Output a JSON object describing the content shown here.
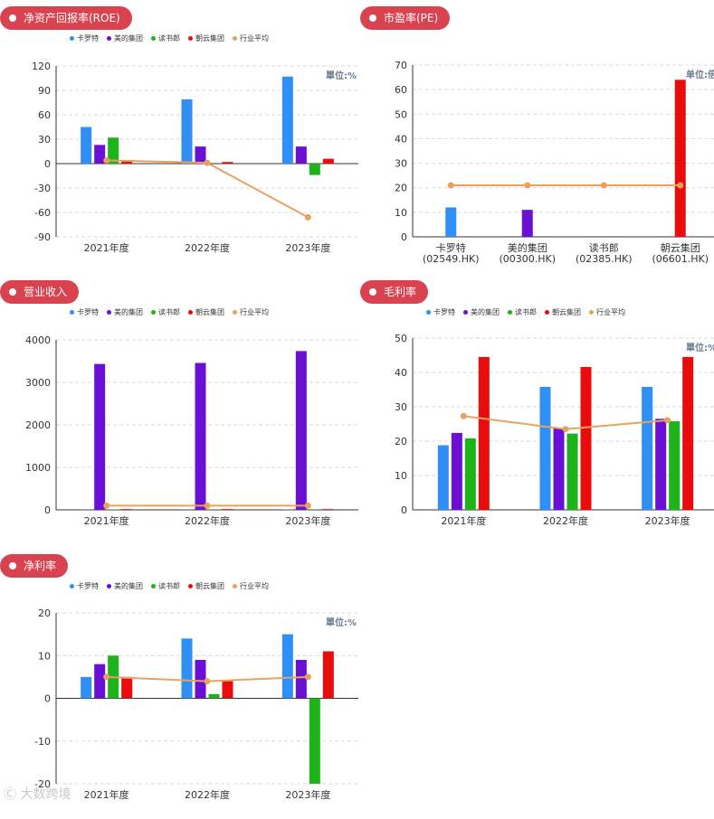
{
  "colors": {
    "卡罗特": "#2f8ff5",
    "美的集团": "#6a0fd4",
    "读书郎": "#1db31a",
    "朝云集团": "#e80c0c",
    "行业平均": "#e8a260",
    "badge": "#d9434f"
  },
  "legend": [
    "卡罗特",
    "美的集团",
    "读书郎",
    "朝云集团",
    "行业平均"
  ],
  "watermark": "大数跨境",
  "chart_data": [
    {
      "id": "roe",
      "type": "bar",
      "title": "净资产回报率(ROE)",
      "unit": "單位:%",
      "categories": [
        "2021年度",
        "2022年度",
        "2023年度"
      ],
      "ylim": [
        -90,
        120
      ],
      "yticks": [
        120,
        90,
        60,
        30,
        0,
        -30,
        -60,
        -90
      ],
      "grid": true,
      "legend_position": "top",
      "series": [
        {
          "name": "卡罗特",
          "values": [
            45,
            79,
            107
          ]
        },
        {
          "name": "美的集团",
          "values": [
            23,
            21,
            21
          ]
        },
        {
          "name": "读书郎",
          "values": [
            32,
            0,
            -14
          ]
        },
        {
          "name": "朝云集团",
          "values": [
            4,
            2,
            6
          ]
        }
      ],
      "line": {
        "name": "行业平均",
        "values": [
          4,
          1,
          -66
        ]
      }
    },
    {
      "id": "pe",
      "type": "bar",
      "title": "市盈率(PE)",
      "unit": "单位:倍",
      "categories": [
        "卡罗特\n(02549.HK)",
        "美的集团\n(00300.HK)",
        "读书郎\n(02385.HK)",
        "朝云集团\n(06601.HK)"
      ],
      "ylim": [
        0,
        70
      ],
      "yticks": [
        70,
        60,
        50,
        40,
        30,
        20,
        10,
        0
      ],
      "grid": true,
      "bars": [
        {
          "name": "卡罗特",
          "value": 12
        },
        {
          "name": "美的集团",
          "value": 11
        },
        {
          "name": "读书郎",
          "value": 0
        },
        {
          "name": "朝云集团",
          "value": 64
        }
      ],
      "line": {
        "name": "行业平均",
        "values": [
          21,
          21,
          21,
          21
        ]
      }
    },
    {
      "id": "revenue",
      "type": "bar",
      "title": "营业收入",
      "unit": "",
      "categories": [
        "2021年度",
        "2022年度",
        "2023年度"
      ],
      "ylim": [
        0,
        4000
      ],
      "yticks": [
        4000,
        3000,
        2000,
        1000,
        0
      ],
      "grid": true,
      "legend_position": "top",
      "series": [
        {
          "name": "卡罗特",
          "values": [
            4,
            5,
            6
          ]
        },
        {
          "name": "美的集团",
          "values": [
            3434,
            3457,
            3737
          ]
        },
        {
          "name": "读书郎",
          "values": [
            8,
            5,
            3
          ]
        },
        {
          "name": "朝云集团",
          "values": [
            18,
            18,
            18
          ]
        }
      ],
      "line": {
        "name": "行业平均",
        "values": [
          99,
          99,
          99
        ]
      }
    },
    {
      "id": "gross_margin",
      "type": "bar",
      "title": "毛利率",
      "unit": "單位:%",
      "categories": [
        "2021年度",
        "2022年度",
        "2023年度"
      ],
      "ylim": [
        0,
        50
      ],
      "yticks": [
        50,
        40,
        30,
        20,
        10,
        0
      ],
      "grid": true,
      "legend_position": "top",
      "series": [
        {
          "name": "卡罗特",
          "values": [
            18.8,
            35.8,
            35.8
          ]
        },
        {
          "name": "美的集团",
          "values": [
            22.4,
            23.8,
            26.5
          ]
        },
        {
          "name": "读书郎",
          "values": [
            20.8,
            22.2,
            25.8
          ]
        },
        {
          "name": "朝云集团",
          "values": [
            44.5,
            41.6,
            44.5
          ]
        }
      ],
      "line": {
        "name": "行业平均",
        "values": [
          27.3,
          23.5,
          26.1
        ]
      }
    },
    {
      "id": "net_margin",
      "type": "bar",
      "title": "净利率",
      "unit": "單位:%",
      "categories": [
        "2021年度",
        "2022年度",
        "2023年度"
      ],
      "ylim": [
        -20,
        20
      ],
      "yticks": [
        20,
        10,
        0,
        -10,
        -20
      ],
      "grid": true,
      "legend_position": "top",
      "series": [
        {
          "name": "卡罗特",
          "values": [
            5,
            14,
            15
          ]
        },
        {
          "name": "美的集团",
          "values": [
            8,
            9,
            9
          ]
        },
        {
          "name": "读书郎",
          "values": [
            10,
            1,
            -20
          ]
        },
        {
          "name": "朝云集团",
          "values": [
            5,
            4,
            11
          ]
        }
      ],
      "line": {
        "name": "行业平均",
        "values": [
          5,
          4,
          5
        ]
      }
    }
  ]
}
